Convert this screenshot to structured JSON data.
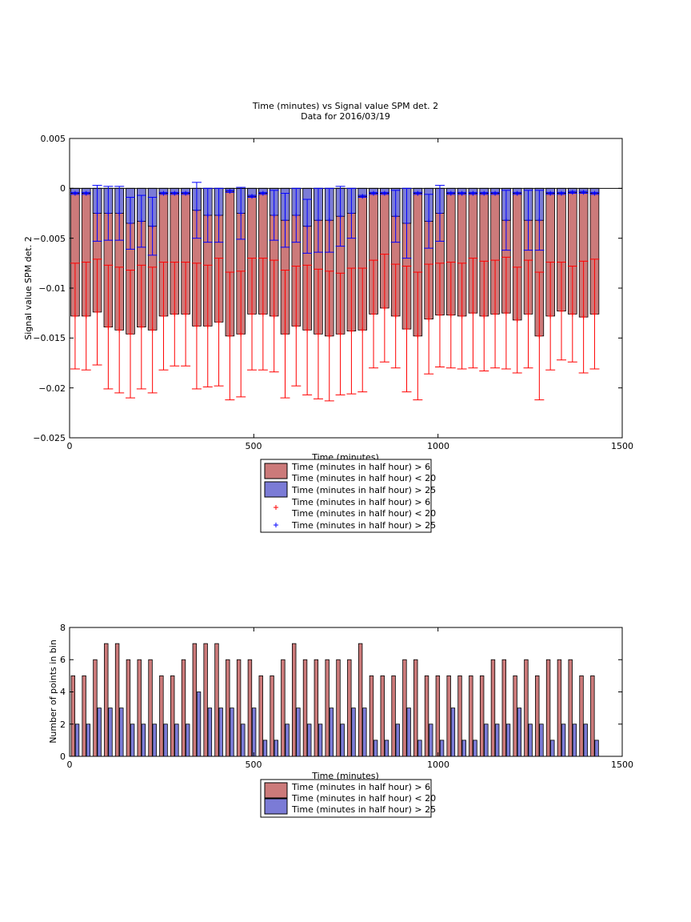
{
  "chart_data": [
    {
      "type": "bar",
      "title": "Time (minutes) vs Signal value SPM det. 2",
      "subtitle": "Data for 2016/03/19",
      "xlabel": "Time (minutes)",
      "ylabel": "Signal value SPM det. 2",
      "xlim": [
        0,
        1500
      ],
      "ylim": [
        -0.025,
        0.005
      ],
      "xticks": [
        "0",
        "500",
        "1000",
        "1500"
      ],
      "yticks": [
        "0.005",
        "0",
        "−0.005",
        "−0.01",
        "−0.015",
        "−0.02",
        "−0.025"
      ],
      "bin_width_minutes": 30,
      "grid": false,
      "legend_position": "below",
      "legend": [
        "Time (minutes in half hour) > 6\nTime (minutes in half hour) < 20",
        "Time (minutes in half hour) > 25",
        "Time (minutes in half hour) > 6\nTime (minutes in half hour) < 20",
        "Time (minutes in half hour) > 25"
      ],
      "x": [
        15,
        45,
        75,
        105,
        135,
        165,
        195,
        225,
        255,
        285,
        315,
        345,
        375,
        405,
        435,
        465,
        495,
        525,
        555,
        585,
        615,
        645,
        675,
        705,
        735,
        765,
        795,
        825,
        855,
        885,
        915,
        945,
        975,
        1005,
        1035,
        1065,
        1095,
        1125,
        1155,
        1185,
        1215,
        1245,
        1275,
        1305,
        1335,
        1365,
        1395,
        1425
      ],
      "series": [
        {
          "color": "#cc7a7a",
          "mean": [
            -0.0128,
            -0.0128,
            -0.0124,
            -0.0139,
            -0.0142,
            -0.0146,
            -0.0139,
            -0.0142,
            -0.0128,
            -0.0126,
            -0.0126,
            -0.0138,
            -0.0138,
            -0.0134,
            -0.0148,
            -0.0146,
            -0.0126,
            -0.0126,
            -0.0128,
            -0.0146,
            -0.0138,
            -0.0142,
            -0.0146,
            -0.0148,
            -0.0146,
            -0.0143,
            -0.0142,
            -0.0126,
            -0.012,
            -0.0128,
            -0.0141,
            -0.0148,
            -0.0131,
            -0.0127,
            -0.0127,
            -0.0128,
            -0.0125,
            -0.0128,
            -0.0126,
            -0.0125,
            -0.0132,
            -0.0126,
            -0.0148,
            -0.0128,
            -0.0123,
            -0.0126,
            -0.0129,
            -0.0126
          ],
          "err": [
            0.0053,
            0.0054,
            0.0053,
            0.0062,
            0.0063,
            0.0064,
            0.0062,
            0.0063,
            0.0054,
            0.0052,
            0.0052,
            0.0063,
            0.0061,
            0.0064,
            0.0064,
            0.0063,
            0.0056,
            0.0056,
            0.0056,
            0.0064,
            0.006,
            0.0065,
            0.0065,
            0.0065,
            0.0061,
            0.0063,
            0.0062,
            0.0054,
            0.0054,
            0.0052,
            0.0063,
            0.0064,
            0.0055,
            0.0052,
            0.0053,
            0.0053,
            0.0055,
            0.0055,
            0.0054,
            0.0056,
            0.0053,
            0.0054,
            0.0064,
            0.0054,
            0.0049,
            0.0048,
            0.0056,
            0.0055
          ]
        },
        {
          "color": "#7b7bd6",
          "mean": [
            -0.0005,
            -0.0005,
            -0.0025,
            -0.0025,
            -0.0025,
            -0.0035,
            -0.0033,
            -0.0038,
            -0.0005,
            -0.0005,
            -0.0005,
            -0.0022,
            -0.0027,
            -0.0027,
            -0.0003,
            -0.0025,
            -0.0008,
            -0.0005,
            -0.0027,
            -0.0032,
            -0.0027,
            -0.0038,
            -0.0032,
            -0.0032,
            -0.0028,
            -0.0025,
            -0.0008,
            -0.0005,
            -0.0005,
            -0.0028,
            -0.0035,
            -0.0005,
            -0.0033,
            -0.0025,
            -0.0005,
            -0.0005,
            -0.0005,
            -0.0005,
            -0.0005,
            -0.0032,
            -0.0005,
            -0.0032,
            -0.0032,
            -0.0005,
            -0.0005,
            -0.0004,
            -0.0004,
            -0.0005
          ],
          "err": [
            0.0001,
            0.0001,
            0.0028,
            0.0027,
            0.0027,
            0.0026,
            0.0026,
            0.0029,
            0.0001,
            0.0001,
            0.0001,
            0.0028,
            0.0027,
            0.0027,
            0.0001,
            0.0026,
            0.0001,
            0.0001,
            0.0025,
            0.0027,
            0.0027,
            0.0027,
            0.0032,
            0.0032,
            0.003,
            0.0025,
            0.0001,
            0.0001,
            0.0001,
            0.0026,
            0.0035,
            0.0001,
            0.0027,
            0.0028,
            0.0001,
            0.0001,
            0.0001,
            0.0001,
            0.0001,
            0.003,
            0.0001,
            0.003,
            0.003,
            0.0001,
            0.0001,
            0.0001,
            0.0001,
            0.0001
          ]
        }
      ]
    },
    {
      "type": "bar",
      "xlabel": "Time (minutes)",
      "ylabel": "Number of points in bin",
      "xlim": [
        0,
        1500
      ],
      "ylim": [
        0,
        8
      ],
      "xticks": [
        "0",
        "500",
        "1000",
        "1500"
      ],
      "yticks": [
        "8",
        "6",
        "4",
        "2",
        "0"
      ],
      "grid": false,
      "legend_position": "below",
      "legend": [
        "Time (minutes in half hour) > 6\nTime (minutes in half hour) < 20",
        "Time (minutes in half hour) > 25"
      ],
      "x": [
        15,
        45,
        75,
        105,
        135,
        165,
        195,
        225,
        255,
        285,
        315,
        345,
        375,
        405,
        435,
        465,
        495,
        525,
        555,
        585,
        615,
        645,
        675,
        705,
        735,
        765,
        795,
        825,
        855,
        885,
        915,
        945,
        975,
        1005,
        1035,
        1065,
        1095,
        1125,
        1155,
        1185,
        1215,
        1245,
        1275,
        1305,
        1335,
        1365,
        1395,
        1425
      ],
      "series": [
        {
          "color": "#cc7a7a",
          "values": [
            5,
            5,
            6,
            7,
            7,
            6,
            6,
            6,
            5,
            5,
            6,
            7,
            7,
            7,
            6,
            6,
            6,
            5,
            5,
            6,
            7,
            6,
            6,
            6,
            6,
            6,
            7,
            5,
            5,
            5,
            6,
            6,
            5,
            5,
            5,
            5,
            5,
            5,
            6,
            6,
            5,
            6,
            5,
            6,
            6,
            6,
            5,
            5
          ]
        },
        {
          "color": "#7b7bd6",
          "values": [
            2,
            2,
            3,
            3,
            3,
            2,
            2,
            2,
            2,
            2,
            2,
            4,
            3,
            3,
            3,
            2,
            3,
            1,
            1,
            2,
            3,
            2,
            2,
            3,
            2,
            3,
            3,
            1,
            1,
            2,
            3,
            1,
            2,
            1,
            3,
            1,
            1,
            2,
            2,
            2,
            3,
            2,
            2,
            1,
            2,
            2,
            2,
            1
          ]
        }
      ]
    }
  ]
}
